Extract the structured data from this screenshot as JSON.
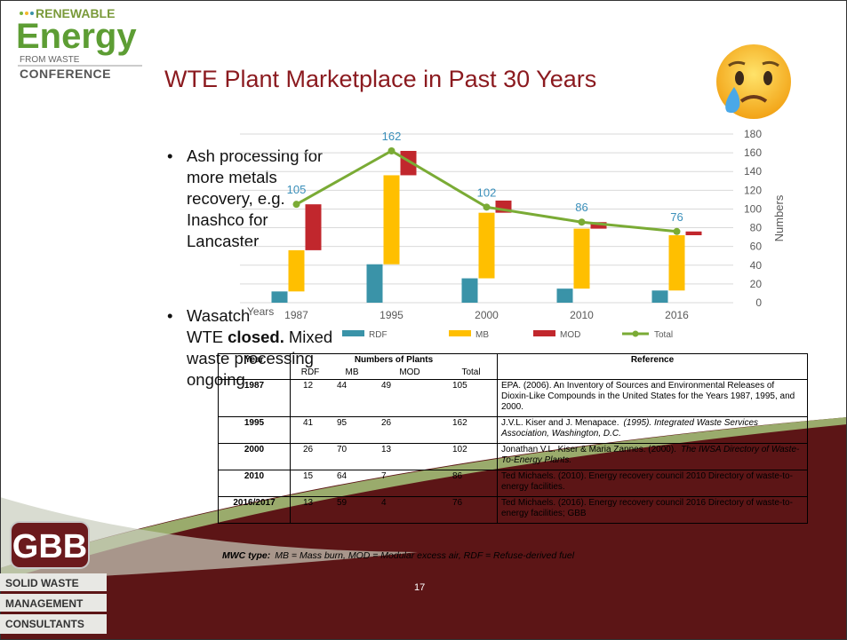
{
  "logo": {
    "line1": "RENEWABLE",
    "line2": "Energy",
    "line3": "FROM WASTE",
    "line4": "CONFERENCE"
  },
  "title": "WTE Plant Marketplace in Past 30 Years",
  "bullets": [
    [
      {
        "text": "Ash processing for more metals recovery, e.g. Inashco for Lancaster"
      }
    ],
    [
      {
        "text": "Wasatch WTE"
      },
      {
        "text": "closed.",
        "bold": true
      },
      {
        "text": "Mixed waste processing ongoing"
      }
    ]
  ],
  "chart_data": {
    "type": "waterfall",
    "categories": [
      "1987",
      "1995",
      "2000",
      "2010",
      "2016"
    ],
    "x_label": "Years",
    "y_label": "Numbers",
    "y_axis_side": "right",
    "ylim": [
      0,
      180
    ],
    "yticks": [
      0,
      20,
      40,
      60,
      80,
      100,
      120,
      140,
      160,
      180
    ],
    "grid": true,
    "legend": "bottom",
    "series": [
      {
        "name": "RDF",
        "type": "bar",
        "color": "#3a93a8",
        "values": [
          12,
          41,
          26,
          15,
          13
        ]
      },
      {
        "name": "MB",
        "type": "bar",
        "color": "#ffbf00",
        "values": [
          44,
          95,
          70,
          64,
          59
        ]
      },
      {
        "name": "MOD",
        "type": "bar",
        "color": "#c1272d",
        "values": [
          49,
          26,
          13,
          7,
          4
        ]
      },
      {
        "name": "Total",
        "type": "line",
        "color": "#7aab35",
        "label_color": "#3a8fba",
        "values": [
          105,
          162,
          102,
          86,
          76
        ]
      }
    ]
  },
  "table": {
    "headers": [
      "Year",
      "Numbers of Plants",
      "Reference"
    ],
    "subheaders": [
      "RDF",
      "MB",
      "MOD",
      "Total"
    ],
    "rows": [
      {
        "year": "1987",
        "values": [
          12,
          44,
          49,
          105
        ],
        "reference": [
          {
            "text": "EPA. (2006). An Inventory of Sources and Environmental Releases of Dioxin-Like Compounds in the United States for the Years 1987, 1995, and 2000."
          }
        ]
      },
      {
        "year": "1995",
        "values": [
          41,
          95,
          26,
          162
        ],
        "reference": [
          {
            "text": "J.V.L. Kiser and J. Menapace."
          },
          {
            "text": "(1995). Integrated Waste Services Association, Washington, D.C.",
            "italic": true
          }
        ]
      },
      {
        "year": "2000",
        "values": [
          26,
          70,
          13,
          102
        ],
        "reference": [
          {
            "text": "Jonathan V.L. Kiser & Maria Zannes. (2000)."
          },
          {
            "text": "The IWSA Directory of Waste-To-Energy Plants.",
            "italic": true
          }
        ]
      },
      {
        "year": "2010",
        "values": [
          15,
          64,
          7,
          86
        ],
        "reference": [
          {
            "text": "Ted Michaels. (2010). Energy recovery council 2010 Directory of waste-to-energy facilities."
          }
        ]
      },
      {
        "year": "2016/2017",
        "values": [
          13,
          59,
          4,
          76
        ],
        "reference": [
          {
            "text": "Ted Michaels. (2016). Energy recovery council 2016 Directory of waste-to-energy facilities; GBB"
          }
        ]
      }
    ]
  },
  "footnote": [
    {
      "text": "MWC type:",
      "bold": true
    },
    {
      "text": "MB = Mass burn, MOD = Modular excess air, RDF = Refuse-derived fuel"
    }
  ],
  "page_number": "17",
  "gbb_logo": {
    "mark": "GBB",
    "lines": [
      "SOLID WASTE",
      "MANAGEMENT",
      "CONSULTANTS"
    ]
  }
}
